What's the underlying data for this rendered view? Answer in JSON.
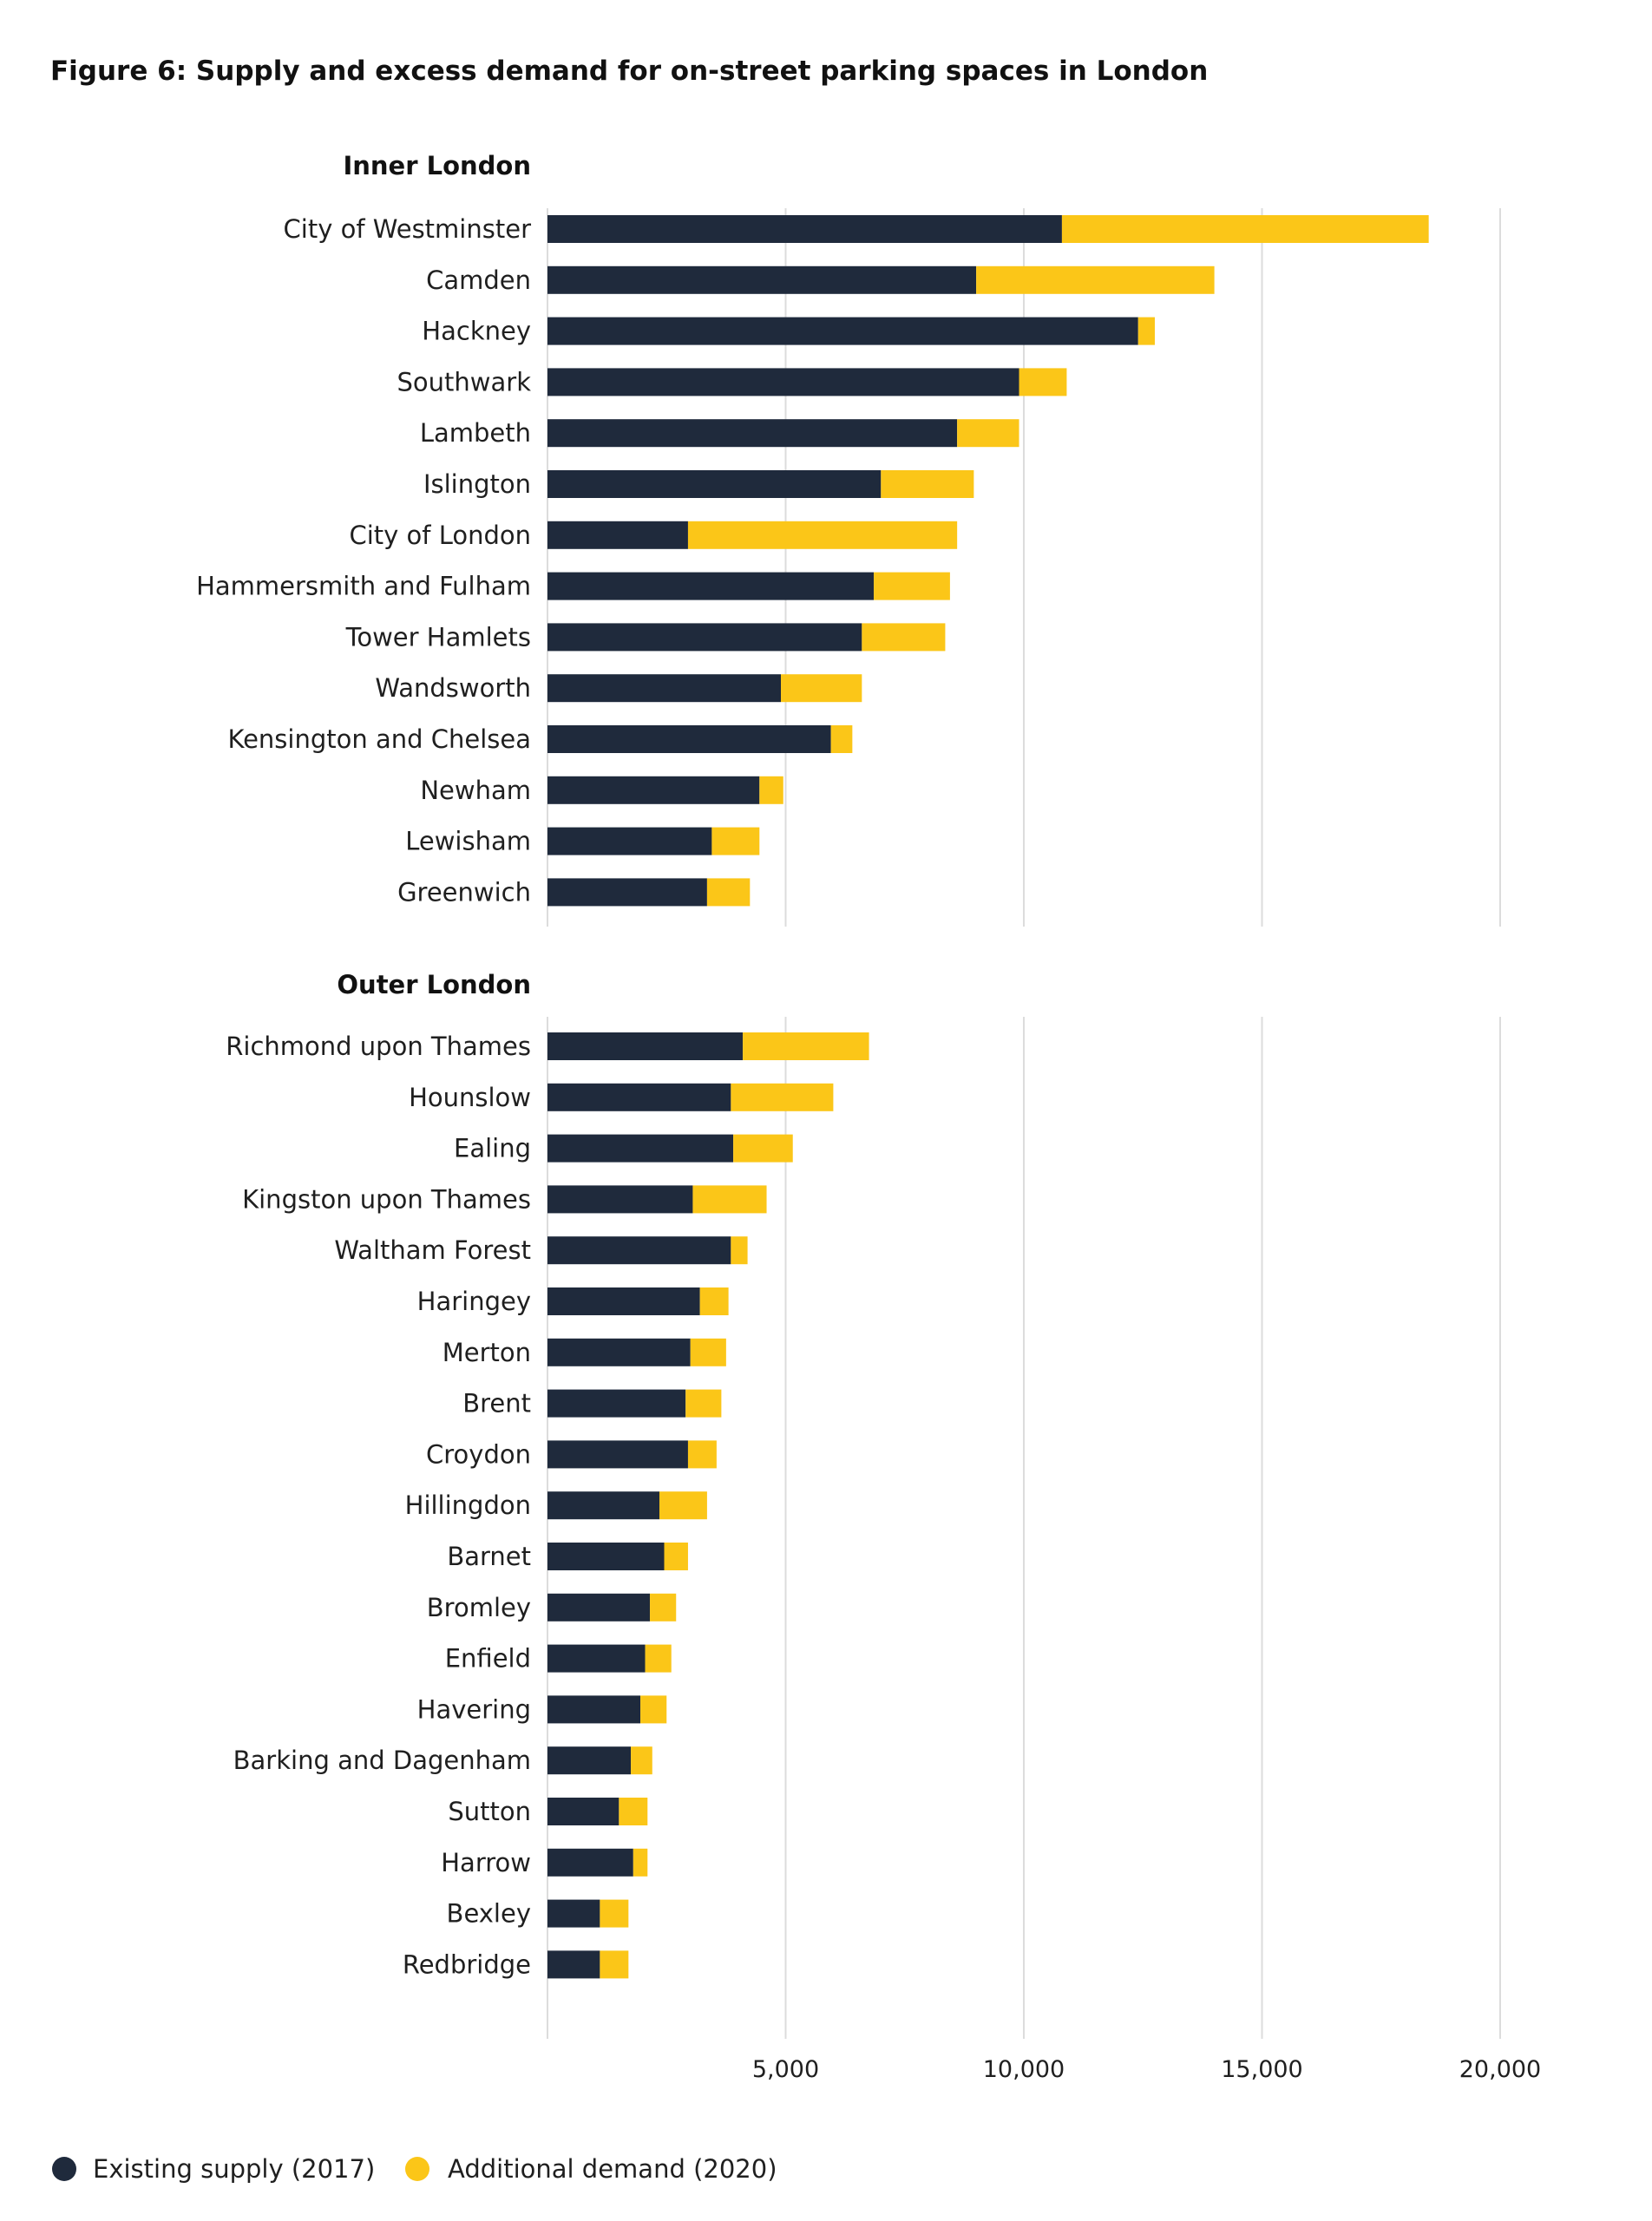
{
  "chart_data": {
    "type": "bar",
    "orientation": "horizontal",
    "stacked": true,
    "title": "Figure 6: Supply and excess demand for on-street parking spaces in London",
    "xlabel": "",
    "ylabel": "",
    "xlim": [
      0,
      20000
    ],
    "xticks": [
      5000,
      10000,
      15000,
      20000
    ],
    "xtick_labels": [
      "5,000",
      "10,000",
      "15,000",
      "20,000"
    ],
    "grid": true,
    "legend_position": "bottom-left",
    "series": [
      {
        "name": "Existing supply (2017)",
        "color": "#1f2a3c"
      },
      {
        "name": "Additional demand (2020)",
        "color": "#fbc618"
      }
    ],
    "groups": [
      {
        "name": "Inner London",
        "categories": [
          "City of Westminster",
          "Camden",
          "Hackney",
          "Southwark",
          "Lambeth",
          "Islington",
          "City of London",
          "Hammersmith and Fulham",
          "Tower Hamlets",
          "Wandsworth",
          "Kensington and Chelsea",
          "Newham",
          "Lewisham",
          "Greenwich"
        ],
        "supply": [
          10800,
          9000,
          12400,
          9900,
          8600,
          7000,
          2950,
          6850,
          6600,
          4900,
          5950,
          4450,
          3450,
          3350
        ],
        "additional": [
          7700,
          5000,
          350,
          1000,
          1300,
          1950,
          5650,
          1600,
          1750,
          1700,
          450,
          500,
          1000,
          900
        ]
      },
      {
        "name": "Outer London",
        "categories": [
          "Richmond upon Thames",
          "Hounslow",
          "Ealing",
          "Kingston upon Thames",
          "Waltham Forest",
          "Haringey",
          "Merton",
          "Brent",
          "Croydon",
          "Hillingdon",
          "Barnet",
          "Bromley",
          "Enfield",
          "Havering",
          "Barking and Dagenham",
          "Sutton",
          "Harrow",
          "Bexley",
          "Redbridge"
        ],
        "supply": [
          4100,
          3850,
          3900,
          3050,
          3850,
          3200,
          3000,
          2900,
          2950,
          2350,
          2450,
          2150,
          2050,
          1950,
          1750,
          1500,
          1800,
          1100,
          1100
        ],
        "additional": [
          2650,
          2150,
          1250,
          1550,
          350,
          600,
          750,
          750,
          600,
          1000,
          500,
          550,
          550,
          550,
          450,
          600,
          300,
          600,
          600
        ]
      }
    ]
  }
}
